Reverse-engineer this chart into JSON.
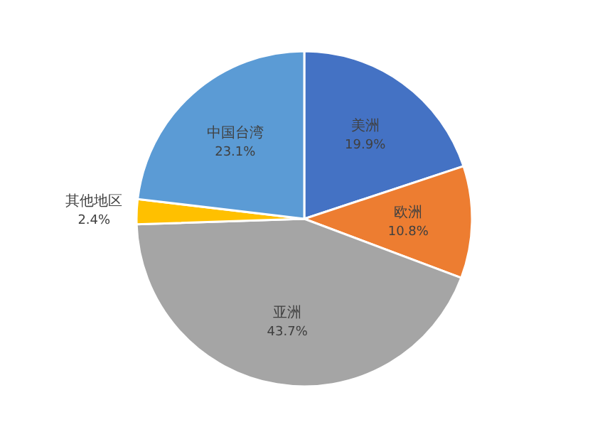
{
  "chart_data": {
    "type": "pie",
    "categories": [
      "美洲",
      "欧洲",
      "亚洲",
      "其他地区",
      "中国台湾"
    ],
    "values": [
      19.9,
      10.8,
      43.7,
      2.4,
      23.1
    ],
    "value_labels": [
      "19.9%",
      "10.8%",
      "43.7%",
      "2.4%",
      "23.1%"
    ],
    "colors": [
      "#4472c4",
      "#ed7d31",
      "#a5a5a5",
      "#ffc000",
      "#5b9bd5"
    ],
    "legend": false
  }
}
